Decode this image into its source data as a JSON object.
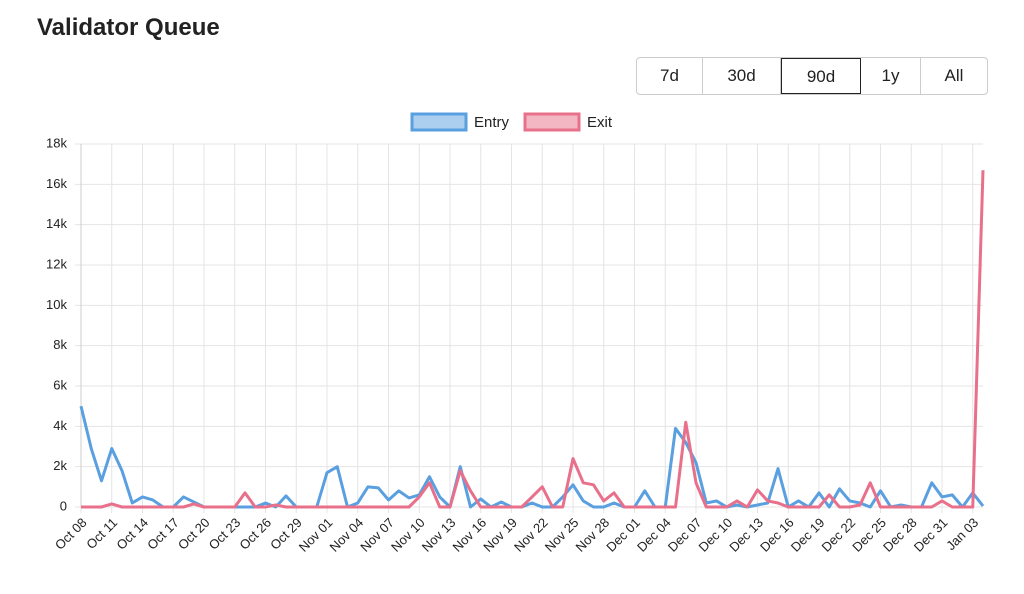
{
  "range_buttons": [
    "7d",
    "30d",
    "90d",
    "1y",
    "All"
  ],
  "selected_range": "90d",
  "chart_data": {
    "type": "line",
    "title": "Validator Queue",
    "legend": "top",
    "grid": true,
    "categories": [
      "Oct 08",
      null,
      null,
      "Oct 11",
      null,
      null,
      "Oct 14",
      null,
      null,
      "Oct 17",
      null,
      null,
      "Oct 20",
      null,
      null,
      "Oct 23",
      null,
      null,
      "Oct 26",
      null,
      null,
      "Oct 29",
      null,
      null,
      "Nov 01",
      null,
      null,
      "Nov 04",
      null,
      null,
      "Nov 07",
      null,
      null,
      "Nov 10",
      null,
      null,
      "Nov 13",
      null,
      null,
      "Nov 16",
      null,
      null,
      "Nov 19",
      null,
      null,
      "Nov 22",
      null,
      null,
      "Nov 25",
      null,
      null,
      "Nov 28",
      null,
      null,
      "Dec 01",
      null,
      null,
      "Dec 04",
      null,
      null,
      "Dec 07",
      null,
      null,
      "Dec 10",
      null,
      null,
      "Dec 13",
      null,
      null,
      "Dec 16",
      null,
      null,
      "Dec 19",
      null,
      null,
      "Dec 22",
      null,
      null,
      "Dec 25",
      null,
      null,
      "Dec 28",
      null,
      null,
      "Dec 31",
      null,
      null,
      "Jan 03",
      null
    ],
    "ylim": [
      0,
      18000
    ],
    "yticks": [
      0,
      {
        "value": 2000,
        "label": "2k"
      },
      {
        "value": 4000,
        "label": "4k"
      },
      {
        "value": 6000,
        "label": "6k"
      },
      {
        "value": 8000,
        "label": "8k"
      },
      {
        "value": 10000,
        "label": "10k"
      },
      {
        "value": 12000,
        "label": "12k"
      },
      {
        "value": 14000,
        "label": "14k"
      },
      {
        "value": 16000,
        "label": "16k"
      },
      {
        "value": 18000,
        "label": "18k"
      }
    ],
    "series": [
      {
        "name": "Entry",
        "color": "#5a9fe0",
        "values": [
          5000,
          2900,
          1300,
          2900,
          1800,
          200,
          500,
          350,
          0,
          0,
          500,
          250,
          0,
          0,
          0,
          0,
          0,
          0,
          200,
          0,
          550,
          0,
          0,
          0,
          1700,
          2000,
          0,
          200,
          1000,
          950,
          350,
          800,
          450,
          600,
          1500,
          500,
          0,
          2000,
          0,
          400,
          0,
          250,
          0,
          0,
          200,
          0,
          0,
          500,
          1100,
          300,
          0,
          0,
          200,
          0,
          0,
          800,
          0,
          0,
          3900,
          3200,
          2200,
          200,
          300,
          0,
          100,
          0,
          100,
          200,
          1900,
          0,
          300,
          0,
          700,
          0,
          900,
          300,
          200,
          0,
          800,
          0,
          100,
          0,
          0,
          1200,
          500,
          600,
          0,
          700,
          50
        ]
      },
      {
        "name": "Exit",
        "color": "#e8708a",
        "values": [
          0,
          0,
          0,
          150,
          0,
          0,
          0,
          0,
          0,
          0,
          0,
          150,
          0,
          0,
          0,
          0,
          700,
          0,
          0,
          100,
          0,
          0,
          0,
          0,
          0,
          0,
          0,
          0,
          0,
          0,
          0,
          0,
          0,
          500,
          1200,
          0,
          0,
          1800,
          800,
          0,
          0,
          0,
          0,
          0,
          500,
          1000,
          0,
          0,
          2400,
          1200,
          1100,
          300,
          700,
          0,
          0,
          0,
          0,
          0,
          0,
          4200,
          1200,
          0,
          0,
          0,
          300,
          0,
          850,
          300,
          200,
          0,
          0,
          0,
          0,
          600,
          0,
          0,
          100,
          1200,
          0,
          0,
          0,
          0,
          0,
          0,
          300,
          0,
          0,
          0,
          16700
        ]
      }
    ]
  }
}
